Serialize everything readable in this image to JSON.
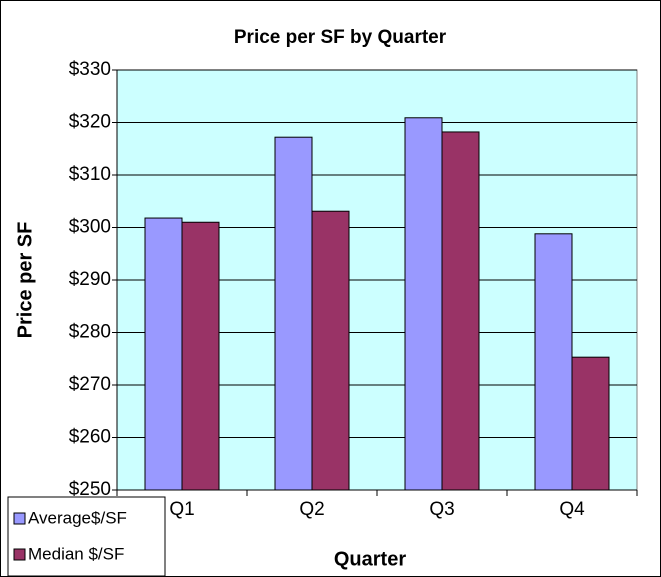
{
  "chart_data": {
    "type": "bar",
    "title": "Price per SF by Quarter",
    "y_label": "Price per SF",
    "x_label": "Quarter",
    "categories": [
      "Q1",
      "Q2",
      "Q3",
      "Q4"
    ],
    "series": [
      {
        "name": "Average$/SF",
        "color": "#9999ff",
        "values": [
          301.8,
          317.2,
          320.9,
          298.8
        ]
      },
      {
        "name": "Median $/SF",
        "color": "#993366",
        "values": [
          301.0,
          303.1,
          318.2,
          275.3
        ]
      }
    ],
    "ylim": [
      250,
      330
    ],
    "yticks": [
      {
        "value": 250,
        "label": "$250"
      },
      {
        "value": 260,
        "label": "$260"
      },
      {
        "value": 270,
        "label": "$270"
      },
      {
        "value": 280,
        "label": "$280"
      },
      {
        "value": 290,
        "label": "$290"
      },
      {
        "value": 300,
        "label": "$300"
      },
      {
        "value": 310,
        "label": "$310"
      },
      {
        "value": 320,
        "label": "$320"
      },
      {
        "value": 330,
        "label": "$330"
      }
    ],
    "grid": true,
    "legend": "bottom-left"
  }
}
